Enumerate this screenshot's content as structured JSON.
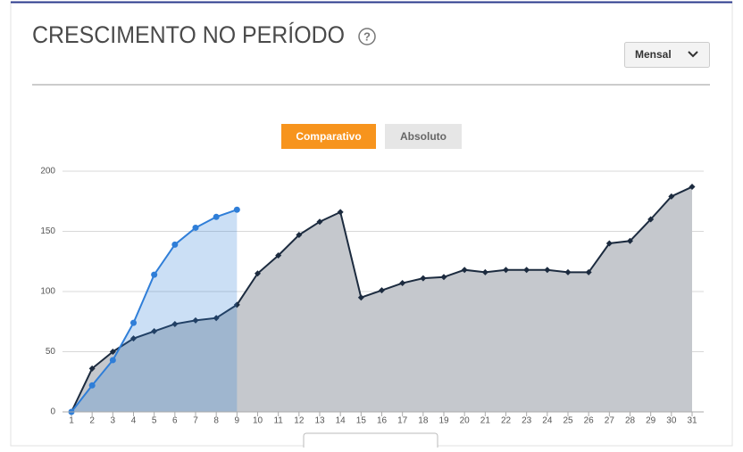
{
  "header": {
    "title": "CRESCIMENTO NO PERÍODO",
    "help": "?",
    "dropdown": "Mensal"
  },
  "tabs": [
    "Comparativo",
    "Absoluto"
  ],
  "chart_data": {
    "type": "area",
    "categories": [
      "1",
      "2",
      "3",
      "4",
      "5",
      "6",
      "7",
      "8",
      "9",
      "10",
      "11",
      "12",
      "13",
      "14",
      "15",
      "16",
      "17",
      "18",
      "19",
      "20",
      "21",
      "22",
      "23",
      "24",
      "25",
      "26",
      "27",
      "28",
      "29",
      "30",
      "31"
    ],
    "series": [
      {
        "color": "#1c2b3f",
        "fill": "#c5c8cd",
        "values": [
          0,
          36,
          50,
          61,
          67,
          73,
          76,
          78,
          89,
          115,
          130,
          147,
          158,
          166,
          95,
          101,
          107,
          111,
          112,
          118,
          116,
          118,
          118,
          118,
          116,
          116,
          140,
          142,
          160,
          179,
          187
        ]
      },
      {
        "color": "#2f7ed8",
        "fill": "rgba(47,126,216,0.25)",
        "values": [
          0,
          22,
          43,
          74,
          114,
          139,
          153,
          162,
          168,
          null,
          null,
          null,
          null,
          null,
          null,
          null,
          null,
          null,
          null,
          null,
          null,
          null,
          null,
          null,
          null,
          null,
          null,
          null,
          null,
          null,
          null
        ]
      }
    ],
    "ylim": [
      0,
      200
    ],
    "yticks": [
      0,
      50,
      100,
      150,
      200
    ],
    "grid": true
  }
}
